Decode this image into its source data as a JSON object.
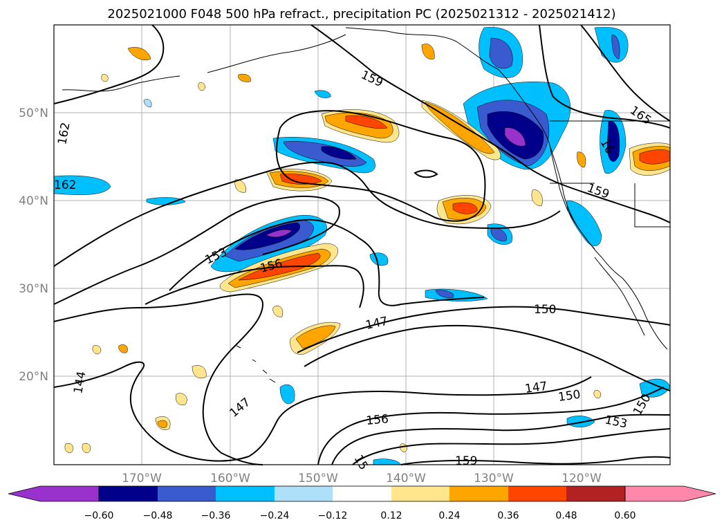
{
  "title": "2025021000 F048 500 hPa refract., precipitation PC (2025021312 - 2025021412)",
  "axes": {
    "lat_labels": [
      "50°N",
      "40°N",
      "30°N",
      "20°N"
    ],
    "lon_labels": [
      "170°W",
      "160°W",
      "150°W",
      "140°W",
      "130°W",
      "120°W"
    ]
  },
  "contour_labels": [
    {
      "text": "159"
    },
    {
      "text": "162"
    },
    {
      "text": "162"
    },
    {
      "text": "165"
    },
    {
      "text": "159"
    },
    {
      "text": "153"
    },
    {
      "text": "156"
    },
    {
      "text": "150"
    },
    {
      "text": "147"
    },
    {
      "text": "147"
    },
    {
      "text": "150"
    },
    {
      "text": "147"
    },
    {
      "text": "156"
    },
    {
      "text": "153"
    },
    {
      "text": "150"
    },
    {
      "text": "159"
    },
    {
      "text": "144"
    },
    {
      "text": "15"
    },
    {
      "text": "16"
    }
  ],
  "colorbar": {
    "ticks": [
      "−0.60",
      "−0.48",
      "−0.36",
      "−0.24",
      "−0.12",
      "0.12",
      "0.24",
      "0.36",
      "0.48",
      "0.60"
    ],
    "colors": [
      "#9932cc",
      "#00008b",
      "#3a5bcf",
      "#00bfff",
      "#aee0fa",
      "#ffffff",
      "#ffe68c",
      "#ffa500",
      "#ff4500",
      "#b22222",
      "#ff88aa"
    ]
  }
}
